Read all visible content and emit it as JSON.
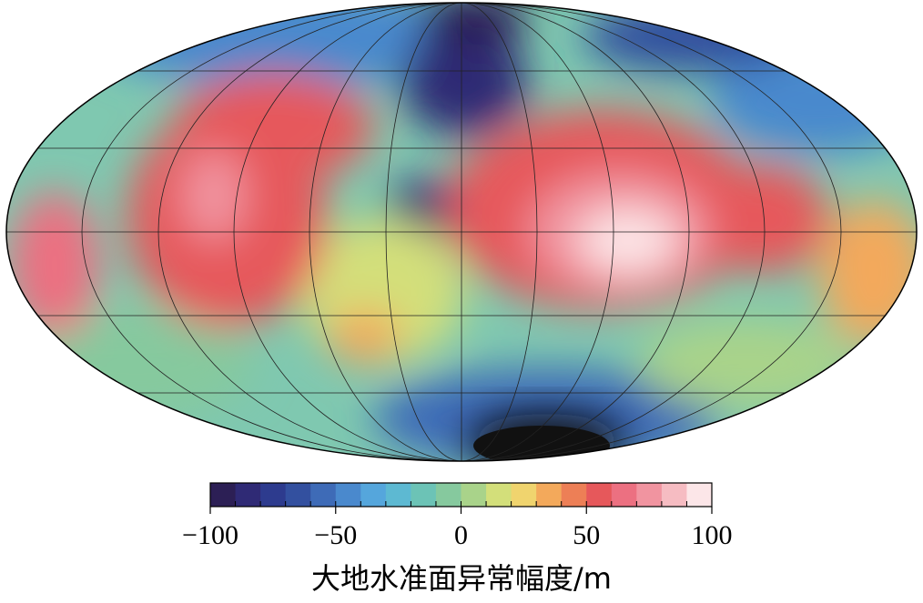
{
  "colorbar": {
    "label": "大地水准面异常幅度/m",
    "range": [
      -100,
      100
    ],
    "ticks": [
      {
        "value": -100,
        "label": "−100"
      },
      {
        "value": -50,
        "label": "−50"
      },
      0,
      50,
      100
    ],
    "colors": [
      "#2c1f55",
      "#2f2a75",
      "#2d3b8e",
      "#33509f",
      "#3e6bb7",
      "#4a89cd",
      "#55a6dc",
      "#5db9d2",
      "#6cc3b6",
      "#86c99e",
      "#a9d38a",
      "#d3df7a",
      "#f0d46e",
      "#f3a95b",
      "#ed7f56",
      "#e6585b",
      "#ec7081",
      "#f194a0",
      "#f6bcc2",
      "#fce6e8"
    ]
  }
}
